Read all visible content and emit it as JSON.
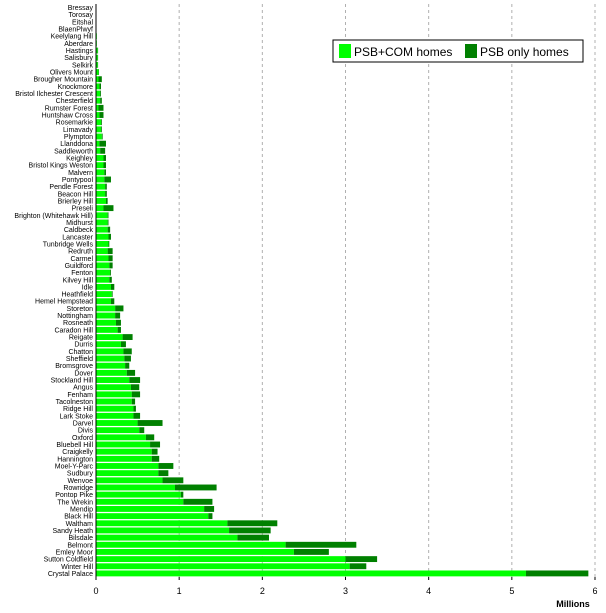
{
  "chart_data": {
    "type": "bar",
    "orientation": "horizontal",
    "stacked": true,
    "title": "",
    "xlabel": "Millions",
    "ylabel": "",
    "xlim": [
      0,
      6
    ],
    "x_ticks": [
      "0",
      "1",
      "2",
      "3",
      "4",
      "5",
      "6"
    ],
    "grid": "vertical dashed",
    "legend_position": "top-right",
    "categories": [
      "Bressay",
      "Torosay",
      "Eitshal",
      "BlaenPlwyf",
      "Keelylang Hill",
      "Aberdare",
      "Hastings",
      "Salisbury",
      "Selkirk",
      "Olivers Mount",
      "Brougher Mountain",
      "Knockmore",
      "Bristol Ilchester Crescent",
      "Chesterfield",
      "Rumster Forest",
      "Huntshaw Cross",
      "Rosemarkie",
      "Limavady",
      "Plympton",
      "Llanddona",
      "Saddleworth",
      "Keighley",
      "Bristol Kings Weston",
      "Malvern",
      "Pontypool",
      "Pendle Forest",
      "Beacon Hill",
      "Brierley Hill",
      "Preseli",
      "Brighton (Whitehawk Hill)",
      "Midhurst",
      "Caldbeck",
      "Lancaster",
      "Tunbridge Wells",
      "Redruth",
      "Carmel",
      "Guildford",
      "Fenton",
      "Kilvey Hill",
      "Idle",
      "Heathfield",
      "Hemel Hempstead",
      "Storeton",
      "Nottingham",
      "Rosneath",
      "Caradon Hill",
      "Reigate",
      "Durris",
      "Chatton",
      "Sheffield",
      "Bromsgrove",
      "Dover",
      "Stockland Hill",
      "Angus",
      "Fenham",
      "Tacolneston",
      "Ridge Hill",
      "Lark Stoke",
      "Darvel",
      "Divis",
      "Oxford",
      "Bluebell Hill",
      "Craigkelly",
      "Hannington",
      "Moel-Y-Parc",
      "Sudbury",
      "Wenvoe",
      "Rowridge",
      "Pontop Pike",
      "The Wrekin",
      "Mendip",
      "Black Hill",
      "Waltham",
      "Sandy Heath",
      "Bilsdale",
      "Belmont",
      "Emley Moor",
      "Sutton Coldfield",
      "Winter Hill",
      "Crystal Palace"
    ],
    "series": [
      {
        "name": "PSB+COM homes",
        "color": "#00ff00",
        "values": [
          0.0,
          0.0,
          0.0,
          0.005,
          0.01,
          0.01,
          0.02,
          0.02,
          0.02,
          0.03,
          0.03,
          0.04,
          0.05,
          0.05,
          0.03,
          0.04,
          0.06,
          0.06,
          0.07,
          0.04,
          0.05,
          0.09,
          0.09,
          0.1,
          0.1,
          0.11,
          0.11,
          0.12,
          0.09,
          0.14,
          0.14,
          0.14,
          0.15,
          0.15,
          0.14,
          0.15,
          0.16,
          0.17,
          0.16,
          0.18,
          0.19,
          0.18,
          0.23,
          0.23,
          0.24,
          0.26,
          0.32,
          0.3,
          0.33,
          0.34,
          0.35,
          0.37,
          0.4,
          0.42,
          0.43,
          0.43,
          0.45,
          0.45,
          0.5,
          0.52,
          0.6,
          0.65,
          0.67,
          0.67,
          0.75,
          0.75,
          0.8,
          0.95,
          1.02,
          1.05,
          1.3,
          1.35,
          1.58,
          1.6,
          1.7,
          2.28,
          2.38,
          3.0,
          3.05,
          5.17
        ]
      },
      {
        "name": "PSB only homes",
        "color": "#008000",
        "values": [
          0.0,
          0.0,
          0.0,
          0.0,
          0.0,
          0.0,
          0.005,
          0.005,
          0.005,
          0.005,
          0.04,
          0.02,
          0.01,
          0.02,
          0.06,
          0.05,
          0.01,
          0.01,
          0.01,
          0.08,
          0.06,
          0.03,
          0.03,
          0.02,
          0.08,
          0.02,
          0.02,
          0.02,
          0.12,
          0.01,
          0.01,
          0.03,
          0.03,
          0.01,
          0.06,
          0.05,
          0.04,
          0.01,
          0.03,
          0.04,
          0.01,
          0.04,
          0.1,
          0.06,
          0.06,
          0.04,
          0.12,
          0.06,
          0.1,
          0.08,
          0.05,
          0.1,
          0.13,
          0.1,
          0.1,
          0.04,
          0.03,
          0.08,
          0.3,
          0.06,
          0.1,
          0.12,
          0.07,
          0.09,
          0.18,
          0.12,
          0.25,
          0.5,
          0.03,
          0.35,
          0.12,
          0.05,
          0.6,
          0.5,
          0.38,
          0.85,
          0.42,
          0.38,
          0.2,
          0.75
        ]
      }
    ]
  }
}
